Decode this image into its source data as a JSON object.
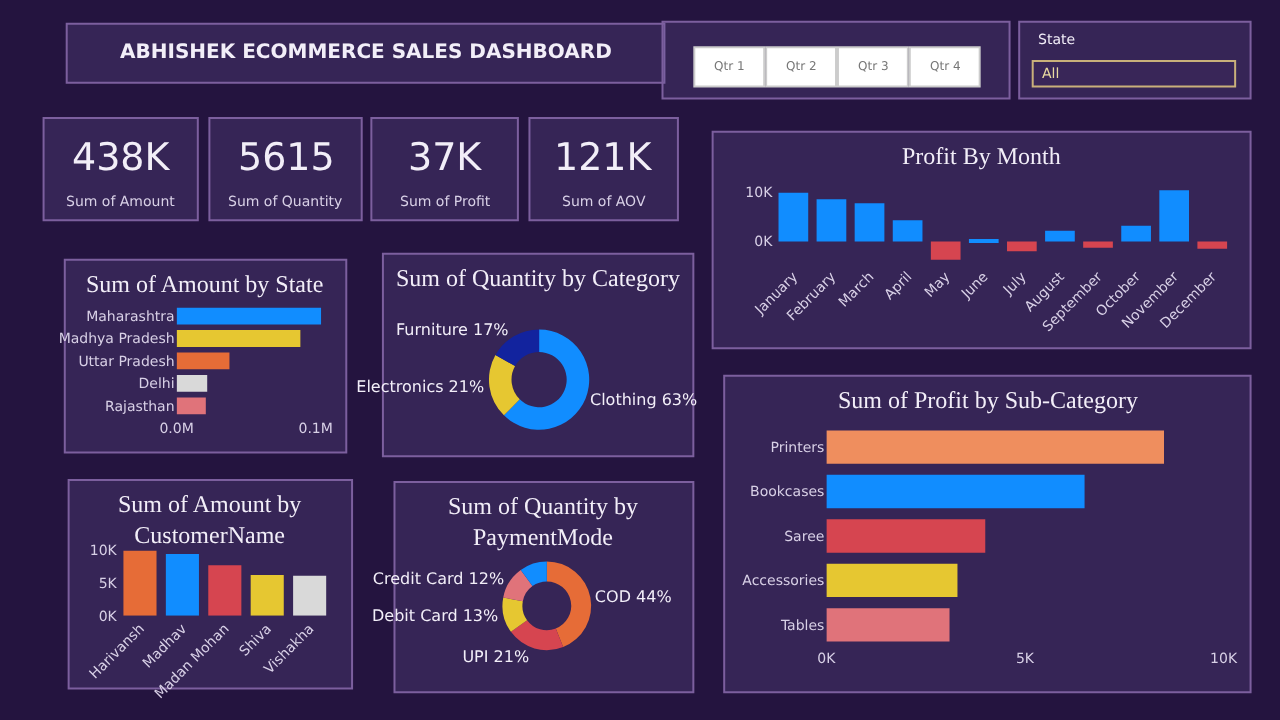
{
  "chart_data": [
    {
      "type": "other",
      "title": "ABHISHEK ECOMMERCE SALES DASHBOARD"
    },
    {
      "type": "other",
      "title": "Sum of Amount",
      "annotations": [
        "438K"
      ]
    },
    {
      "type": "other",
      "title": "Sum of Quantity",
      "annotations": [
        "5615"
      ]
    },
    {
      "type": "other",
      "title": "Sum of Profit",
      "annotations": [
        "37K"
      ]
    },
    {
      "type": "other",
      "title": "Sum of AOV",
      "annotations": [
        "121K"
      ]
    },
    {
      "type": "other",
      "annotations": [
        "Qtr 1",
        "Qtr 2",
        "Qtr 3",
        "Qtr 4"
      ]
    },
    {
      "type": "other",
      "title": "State",
      "annotations": [
        "All"
      ]
    },
    {
      "type": "bar",
      "title": "Profit By Month",
      "categories": [
        "January",
        "February",
        "March",
        "April",
        "May",
        "June",
        "July",
        "August",
        "September",
        "October",
        "November",
        "December"
      ],
      "values": [
        9900,
        8600,
        7800,
        4300,
        -3700,
        400,
        -2000,
        2200,
        -1300,
        3200,
        10400,
        -1500
      ],
      "colors": [
        "#118dff",
        "#118dff",
        "#118dff",
        "#118dff",
        "#d64550",
        "#118dff",
        "#d64550",
        "#118dff",
        "#d64550",
        "#118dff",
        "#118dff",
        "#d64550"
      ],
      "ylim": [
        -4500,
        11500
      ],
      "yticks": [
        {
          "value": 0,
          "label": "0K"
        },
        {
          "value": 10000,
          "label": "10K"
        }
      ]
    },
    {
      "type": "bar",
      "title": "Sum of Amount by State",
      "orientation": "horizontal",
      "categories": [
        "Maharashtra",
        "Madhya Pradesh",
        "Uttar Pradesh",
        "Delhi",
        "Rajasthan"
      ],
      "values": [
        104000,
        89000,
        38000,
        22000,
        21000
      ],
      "colors": [
        "#118dff",
        "#e6c731",
        "#e66c37",
        "#d9d9d9",
        "#e0737a"
      ],
      "xlim": [
        0,
        104000
      ],
      "xticks": [
        {
          "value": 0,
          "label": "0.0M"
        },
        {
          "value": 100000,
          "label": "0.1M"
        }
      ]
    },
    {
      "type": "donut",
      "title": "Sum of Quantity by Category",
      "categories": [
        "Clothing",
        "Electronics",
        "Furniture"
      ],
      "values": [
        63,
        21,
        17
      ],
      "value_labels": [
        "63%",
        "21%",
        "17%"
      ],
      "colors": [
        "#118dff",
        "#e6c731",
        "#12239e"
      ]
    },
    {
      "type": "bar",
      "title": "Sum of Amount by CustomerName",
      "categories": [
        "Harivansh",
        "Madhav",
        "Madan Mohan",
        "Shiva",
        "Vishakha"
      ],
      "values": [
        9900,
        9400,
        7700,
        6200,
        6100
      ],
      "colors": [
        "#e66c37",
        "#118dff",
        "#d64550",
        "#e6c731",
        "#d9d9d9"
      ],
      "ylim": [
        0,
        10500
      ],
      "yticks": [
        {
          "value": 0,
          "label": "0K"
        },
        {
          "value": 5000,
          "label": "5K"
        },
        {
          "value": 10000,
          "label": "10K"
        }
      ]
    },
    {
      "type": "donut",
      "title": "Sum of Quantity by PaymentMode",
      "categories": [
        "COD",
        "UPI",
        "Debit Card",
        "Credit Card",
        null
      ],
      "values": [
        44,
        21,
        13,
        12,
        10
      ],
      "value_labels": [
        "44%",
        "21%",
        "13%",
        "12%",
        null
      ],
      "colors": [
        "#e66c37",
        "#d64550",
        "#e6c731",
        "#e0737a",
        "#118dff"
      ]
    },
    {
      "type": "bar",
      "title": "Sum of Profit by Sub-Category",
      "orientation": "horizontal",
      "categories": [
        "Printers",
        "Bookcases",
        "Saree",
        "Accessories",
        "Tables"
      ],
      "values": [
        8500,
        6500,
        4000,
        3300,
        3100
      ],
      "colors": [
        "#ef8e5e",
        "#118dff",
        "#d64550",
        "#e6c731",
        "#e0737a"
      ],
      "xlim": [
        0,
        10000
      ],
      "xticks": [
        {
          "value": 0,
          "label": "0K"
        },
        {
          "value": 5000,
          "label": "5K"
        },
        {
          "value": 10000,
          "label": "10K"
        }
      ]
    }
  ]
}
